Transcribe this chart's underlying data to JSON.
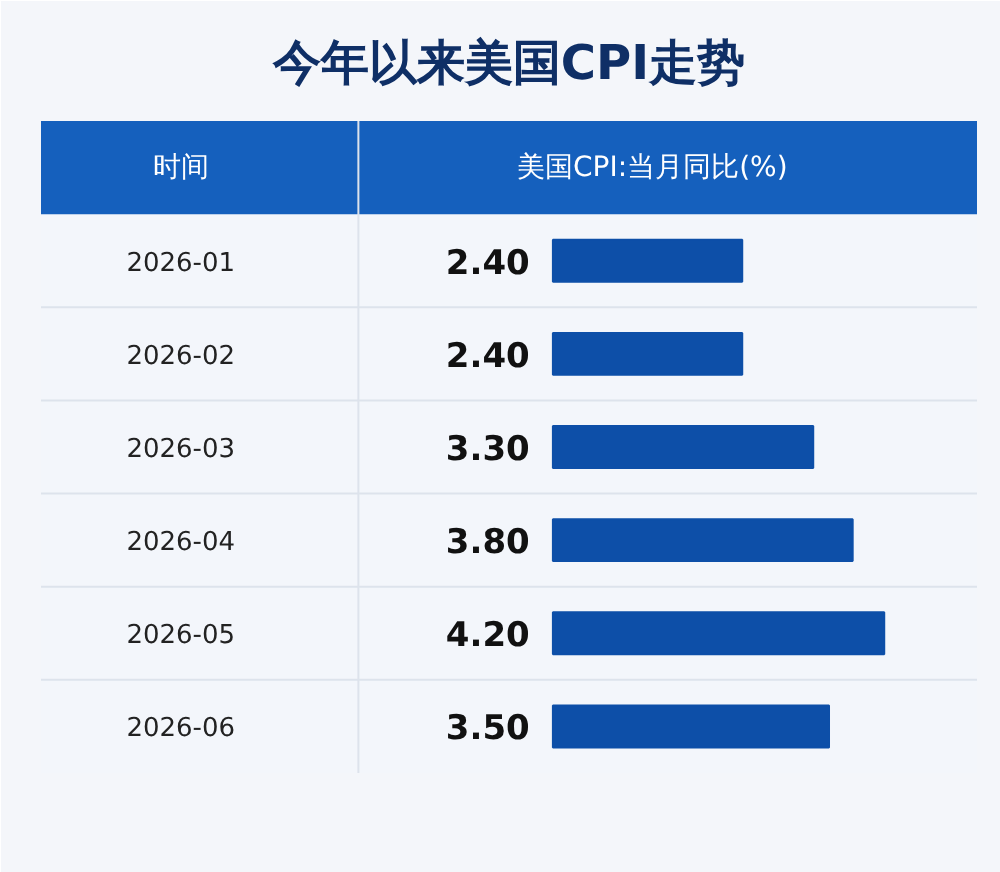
{
  "chart_data": {
    "type": "bar",
    "orientation": "horizontal",
    "title": "今年以来美国CPI走势",
    "ylabel": "时间",
    "xlabel": "美国CPI:当月同比(%)",
    "categories": [
      "2026-01",
      "2026-02",
      "2026-03",
      "2026-04",
      "2026-05",
      "2026-06"
    ],
    "values": [
      2.4,
      2.4,
      3.3,
      3.8,
      4.2,
      3.5
    ],
    "value_labels": [
      "2.40",
      "2.40",
      "3.30",
      "3.80",
      "4.20",
      "3.50"
    ],
    "color": "#0d4fa8"
  }
}
